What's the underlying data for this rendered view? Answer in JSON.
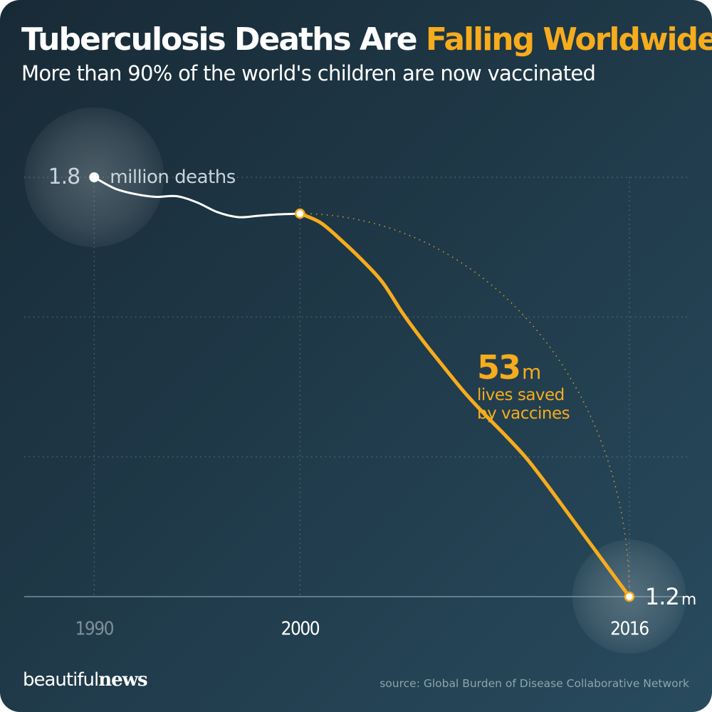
{
  "header": {
    "title_part1": "Tuberculosis Deaths Are ",
    "title_part2": "Falling Worldwide",
    "subtitle": "More than 90% of the world's children are now vaccinated"
  },
  "annotations": {
    "start_value": "1.8",
    "start_unit": "million deaths",
    "end_value": "1.2",
    "end_unit": "m",
    "saved_value": "53",
    "saved_unit": "m",
    "saved_line1": "lives saved",
    "saved_line2": "by vaccines"
  },
  "footer": {
    "logo_regular": "beautiful",
    "logo_bold": "news",
    "source": "source: Global Burden of Disease Collaborative Network"
  },
  "colors": {
    "accent": "#f6ac1d",
    "line_pre": "#ffffff",
    "tick_muted": "#7f8f99",
    "tick_bright": "#ffffff"
  },
  "chart_data": {
    "type": "line",
    "x_ticks": [
      {
        "x": 1990,
        "label": "1990",
        "muted": true
      },
      {
        "x": 2000,
        "label": "2000",
        "muted": false
      },
      {
        "x": 2016,
        "label": "2016",
        "muted": false
      }
    ],
    "xlim": [
      1986.6,
      2019.6
    ],
    "ylim": [
      1.2,
      1.8
    ],
    "series": [
      {
        "x": [
          1990,
          1991,
          1992,
          1993,
          1994,
          1995,
          1996,
          1997,
          1998,
          1999,
          2000
        ],
        "y": [
          1.8,
          1.784,
          1.776,
          1.772,
          1.773,
          1.764,
          1.75,
          1.743,
          1.745,
          1.747,
          1.748
        ],
        "color": "#ffffff"
      },
      {
        "x": [
          2000,
          2001,
          2002,
          2003,
          2004,
          2005,
          2006,
          2007,
          2008,
          2009,
          2010,
          2011,
          2012,
          2013,
          2014,
          2015,
          2016
        ],
        "y": [
          1.748,
          1.735,
          1.71,
          1.682,
          1.65,
          1.605,
          1.565,
          1.528,
          1.492,
          1.46,
          1.43,
          1.398,
          1.36,
          1.32,
          1.28,
          1.24,
          1.2
        ],
        "color": "#f6ac1d"
      }
    ],
    "counterfactual": {
      "from_x": 2000,
      "from_y": 1.748,
      "to_x": 2016,
      "to_y": 1.2
    },
    "gridlines_y": [
      1.8,
      1.6,
      1.4
    ],
    "grid": true
  }
}
